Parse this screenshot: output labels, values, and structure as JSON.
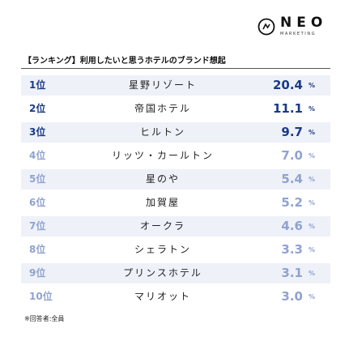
{
  "brand": {
    "name": "NEO",
    "sub": "MARKETING"
  },
  "colors": {
    "top": "#1a3a87",
    "rest": "#8fa3cf",
    "row_band": "#eef1f8"
  },
  "chart_data": {
    "type": "table",
    "title": "【ランキング】利用したいと思うホテルのブランド想起",
    "unit": "%",
    "rows": [
      {
        "rank": "1位",
        "name": "星野リゾート",
        "value": "20.4"
      },
      {
        "rank": "2位",
        "name": "帝国ホテル",
        "value": "11.1"
      },
      {
        "rank": "3位",
        "name": "ヒルトン",
        "value": "9.7"
      },
      {
        "rank": "4位",
        "name": "リッツ・カールトン",
        "value": "7.0"
      },
      {
        "rank": "5位",
        "name": "星のや",
        "value": "5.4"
      },
      {
        "rank": "6位",
        "name": "加賀屋",
        "value": "5.2"
      },
      {
        "rank": "7位",
        "name": "オークラ",
        "value": "4.6"
      },
      {
        "rank": "8位",
        "name": "シェラトン",
        "value": "3.3"
      },
      {
        "rank": "9位",
        "name": "プリンスホテル",
        "value": "3.1"
      },
      {
        "rank": "10位",
        "name": "マリオット",
        "value": "3.0"
      }
    ]
  },
  "footnote": "※回答者:全員"
}
